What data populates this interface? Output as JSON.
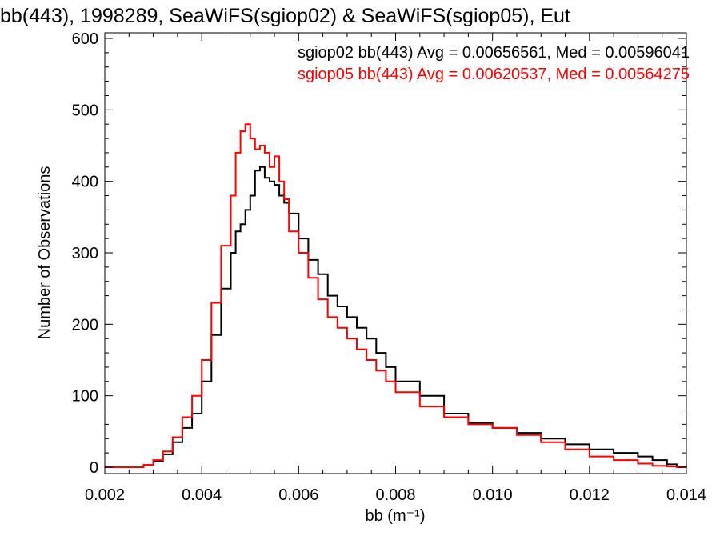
{
  "chart_data": {
    "type": "line",
    "title": "bb(443), 1998289, SeaWiFS(sgiop02) & SeaWiFS(sgiop05), Eut",
    "xlabel": "bb (m⁻¹)",
    "ylabel": "Number of Observations",
    "xlim": [
      0.002,
      0.014
    ],
    "ylim": [
      0,
      600
    ],
    "x_ticks": [
      "0.002",
      "0.004",
      "0.006",
      "0.008",
      "0.010",
      "0.012",
      "0.014"
    ],
    "y_ticks": [
      "0",
      "100",
      "200",
      "300",
      "400",
      "500",
      "600"
    ],
    "legend_position": "top-right",
    "step_style": "histogram",
    "series": [
      {
        "name": "sgiop02",
        "color": "#000000",
        "legend": "sgiop02 bb(443) Avg = 0.00656561, Med = 0.00596041",
        "x": [
          0.002,
          0.0025,
          0.0028,
          0.003,
          0.0032,
          0.0034,
          0.0036,
          0.0038,
          0.004,
          0.0042,
          0.0044,
          0.0046,
          0.0047,
          0.0048,
          0.0049,
          0.005,
          0.0051,
          0.0052,
          0.0053,
          0.0054,
          0.0055,
          0.0056,
          0.0057,
          0.0058,
          0.006,
          0.0062,
          0.0064,
          0.0066,
          0.0068,
          0.007,
          0.0072,
          0.0074,
          0.0076,
          0.0078,
          0.008,
          0.0085,
          0.009,
          0.0095,
          0.01,
          0.0105,
          0.011,
          0.0115,
          0.012,
          0.0125,
          0.013,
          0.0133,
          0.0136,
          0.0138,
          0.014
        ],
        "y": [
          0,
          0,
          3,
          8,
          18,
          35,
          55,
          75,
          120,
          185,
          250,
          300,
          330,
          340,
          360,
          380,
          415,
          420,
          405,
          400,
          395,
          380,
          370,
          355,
          320,
          290,
          270,
          240,
          225,
          210,
          195,
          180,
          160,
          140,
          120,
          100,
          75,
          62,
          55,
          48,
          40,
          32,
          25,
          20,
          15,
          10,
          4,
          1,
          0
        ]
      },
      {
        "name": "sgiop05",
        "color": "#ff0000",
        "legend": "sgiop05 bb(443) Avg = 0.00620537, Med = 0.00564275",
        "x": [
          0.002,
          0.0025,
          0.0028,
          0.003,
          0.0032,
          0.0034,
          0.0036,
          0.0038,
          0.004,
          0.0042,
          0.0044,
          0.0046,
          0.0047,
          0.0048,
          0.0049,
          0.005,
          0.0051,
          0.0052,
          0.0053,
          0.0054,
          0.0055,
          0.0056,
          0.0057,
          0.0058,
          0.006,
          0.0062,
          0.0064,
          0.0066,
          0.0068,
          0.007,
          0.0072,
          0.0074,
          0.0076,
          0.0078,
          0.008,
          0.0085,
          0.009,
          0.0095,
          0.01,
          0.0105,
          0.011,
          0.0115,
          0.012,
          0.0125,
          0.013,
          0.0133,
          0.0136,
          0.0138,
          0.014
        ],
        "y": [
          0,
          0,
          3,
          10,
          22,
          42,
          70,
          100,
          150,
          230,
          310,
          380,
          440,
          470,
          480,
          460,
          445,
          450,
          440,
          420,
          435,
          400,
          375,
          330,
          300,
          265,
          235,
          210,
          195,
          180,
          165,
          150,
          135,
          120,
          105,
          85,
          70,
          60,
          55,
          45,
          35,
          25,
          15,
          10,
          5,
          2,
          1,
          0,
          0
        ]
      }
    ]
  }
}
